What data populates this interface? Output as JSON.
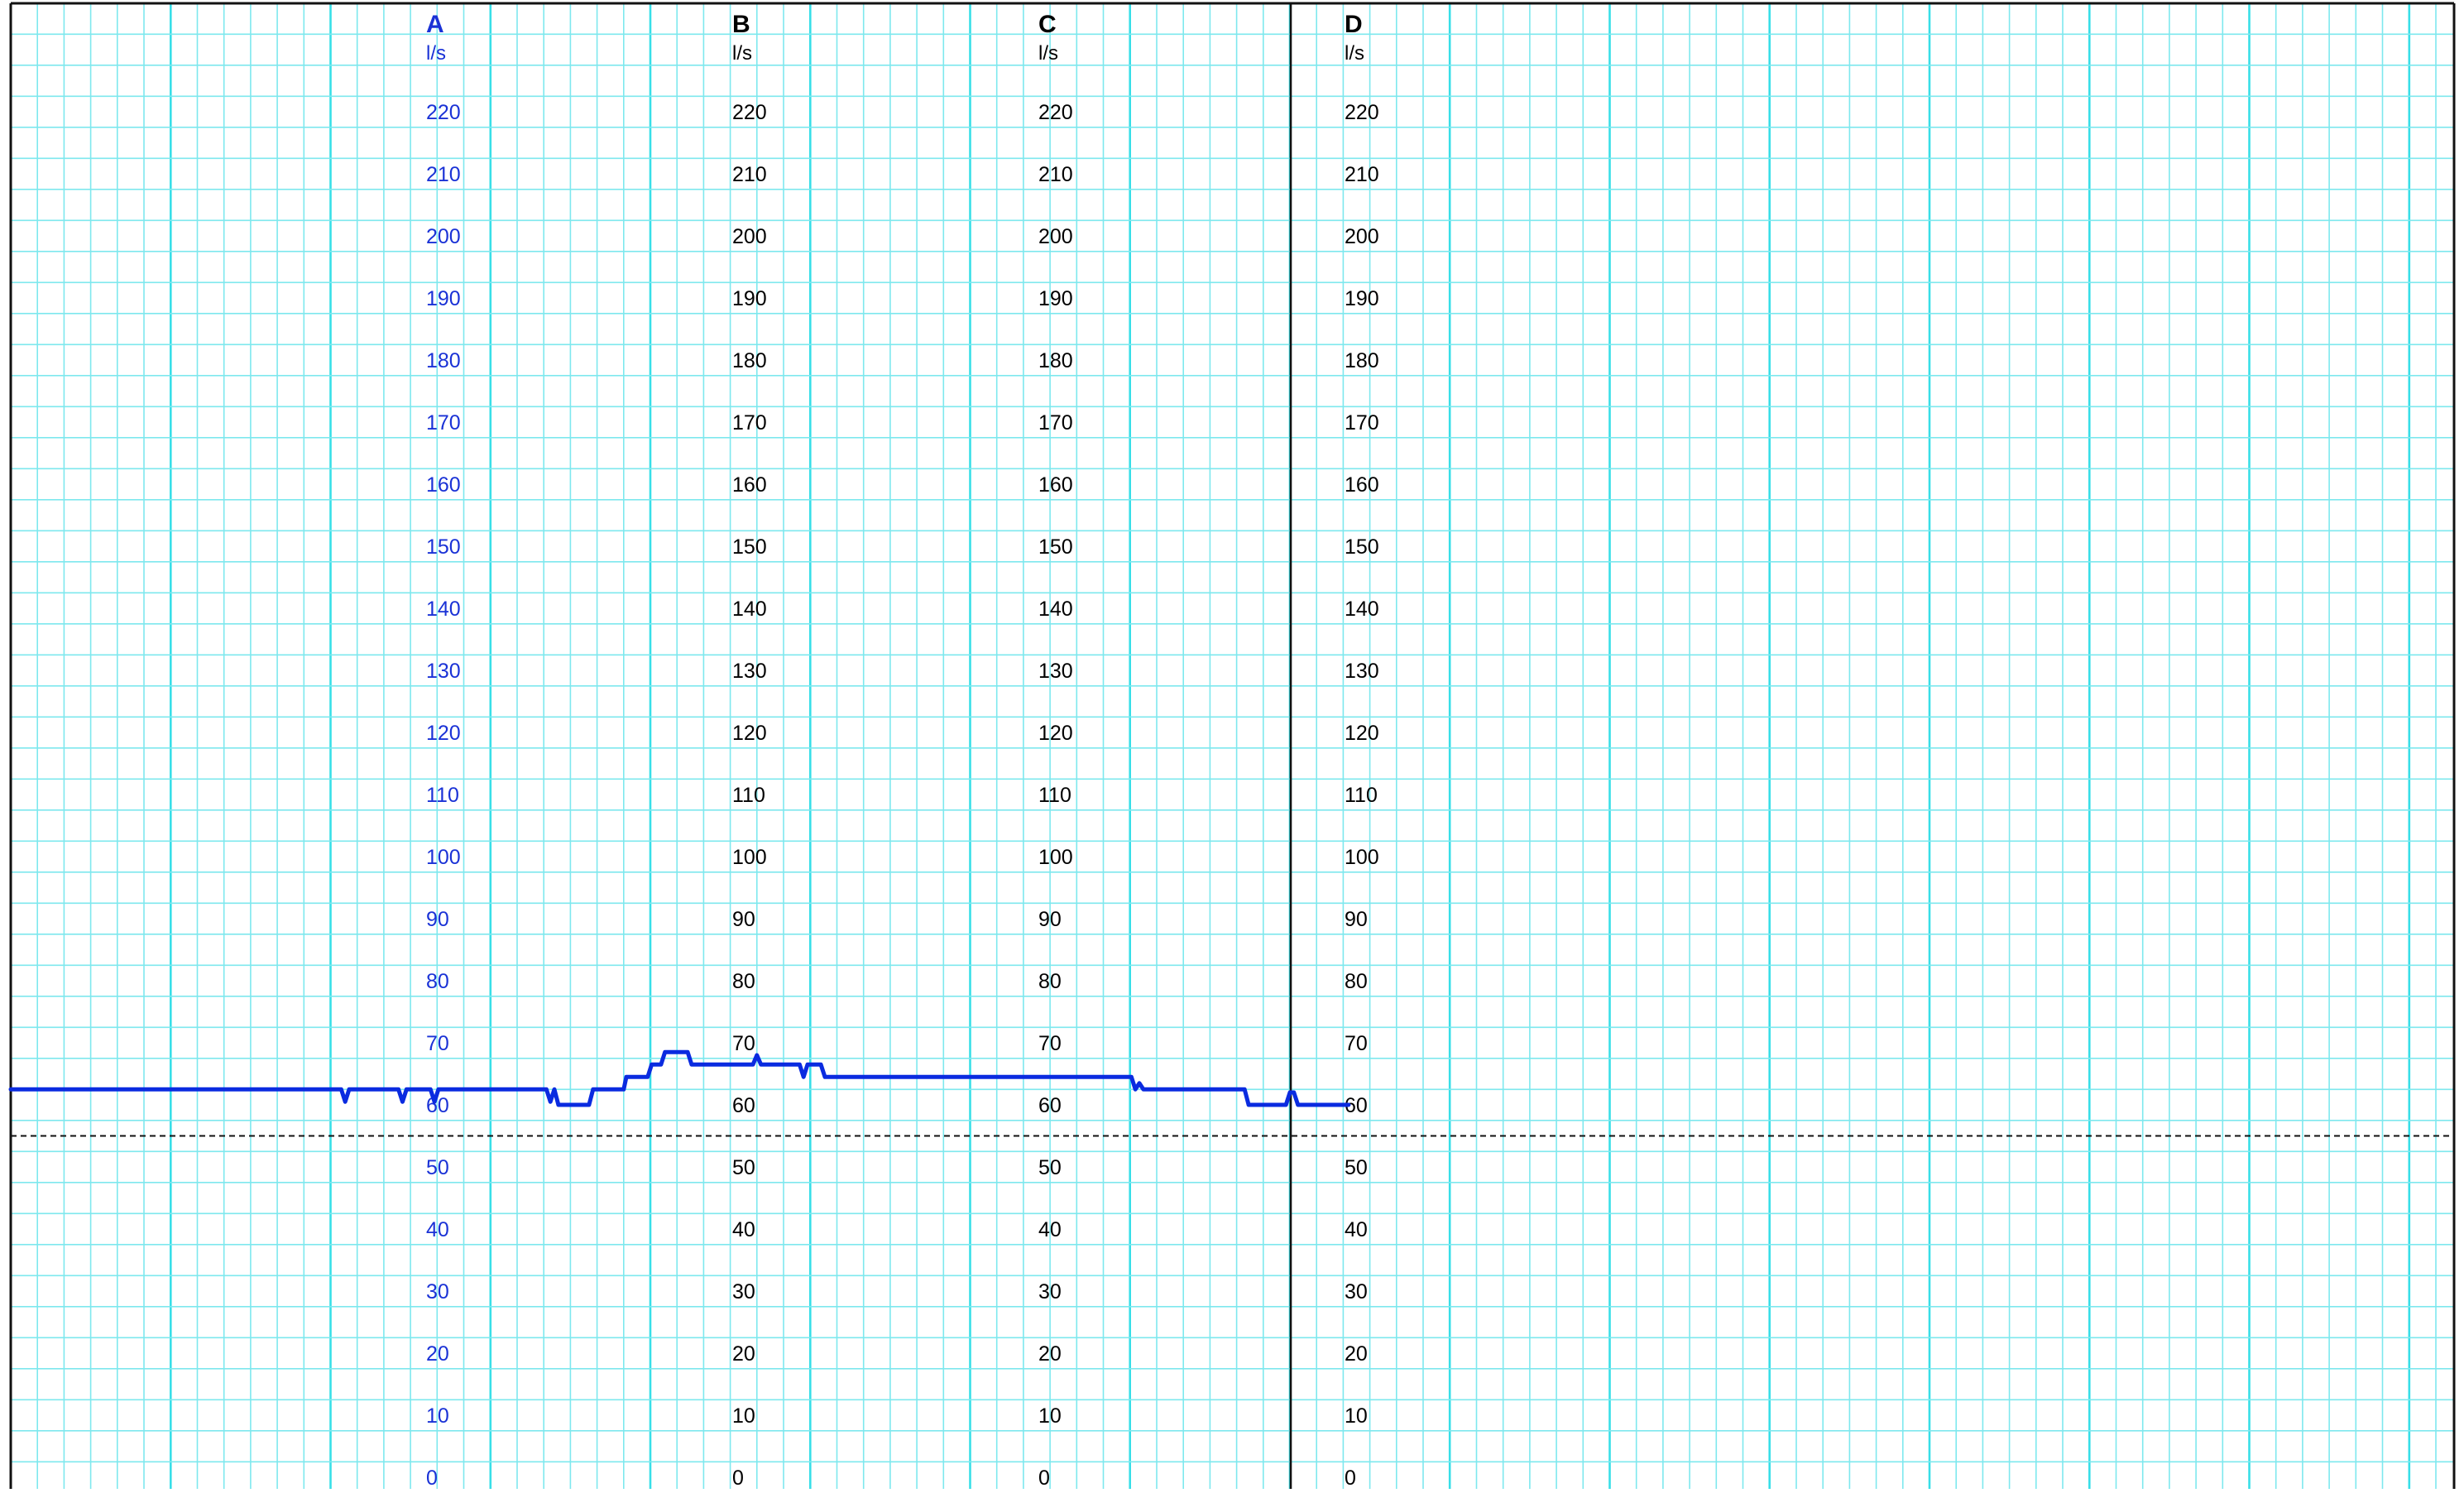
{
  "chart_data": {
    "type": "line",
    "grid": true,
    "threshold": 55,
    "colors": {
      "grid_minor": "#7ee8ee",
      "grid_major": "#38dfe8",
      "series": "#0a2be0",
      "axis_a": "#1a32d6",
      "axis_other": "#000000",
      "border": "#111111",
      "threshold": "#111111"
    },
    "axes": [
      {
        "label": "A",
        "unit": "l/s",
        "color": "#1a32d6",
        "ticks": [
          "220",
          "210",
          "200",
          "190",
          "180",
          "170",
          "160",
          "150",
          "140",
          "130",
          "120",
          "110",
          "100",
          "90",
          "80",
          "70",
          "60",
          "50",
          "40",
          "30",
          "20",
          "10",
          "0"
        ]
      },
      {
        "label": "B",
        "unit": "l/s",
        "color": "#000000",
        "ticks": [
          "220",
          "210",
          "200",
          "190",
          "180",
          "170",
          "160",
          "150",
          "140",
          "130",
          "120",
          "110",
          "100",
          "90",
          "80",
          "70",
          "60",
          "50",
          "40",
          "30",
          "20",
          "10",
          "0"
        ]
      },
      {
        "label": "C",
        "unit": "l/s",
        "color": "#000000",
        "ticks": [
          "220",
          "210",
          "200",
          "190",
          "180",
          "170",
          "160",
          "150",
          "140",
          "130",
          "120",
          "110",
          "100",
          "90",
          "80",
          "70",
          "60",
          "50",
          "40",
          "30",
          "20",
          "10",
          "0"
        ]
      },
      {
        "label": "D",
        "unit": "l/s",
        "color": "#000000",
        "ticks": [
          "220",
          "210",
          "200",
          "190",
          "180",
          "170",
          "160",
          "150",
          "140",
          "130",
          "120",
          "110",
          "100",
          "90",
          "80",
          "70",
          "60",
          "50",
          "40",
          "30",
          "20",
          "10",
          "0"
        ]
      }
    ],
    "ylim": [
      0,
      220
    ],
    "xlim": [
      0,
      48
    ],
    "series": [
      {
        "axis": "A",
        "points": [
          [
            0,
            62.5
          ],
          [
            12.4,
            62.5
          ],
          [
            12.55,
            60.5
          ],
          [
            12.7,
            62.5
          ],
          [
            14.55,
            62.5
          ],
          [
            14.7,
            60.5
          ],
          [
            14.85,
            62.5
          ],
          [
            15.75,
            62.5
          ],
          [
            15.9,
            60.5
          ],
          [
            16.05,
            62.5
          ],
          [
            20.1,
            62.5
          ],
          [
            20.25,
            60.5
          ],
          [
            20.4,
            62.5
          ],
          [
            20.55,
            60.0
          ],
          [
            21.7,
            60.0
          ],
          [
            21.85,
            62.5
          ],
          [
            23.0,
            62.5
          ],
          [
            23.1,
            64.5
          ],
          [
            23.9,
            64.5
          ],
          [
            24.05,
            66.5
          ],
          [
            24.4,
            66.5
          ],
          [
            24.55,
            68.5
          ],
          [
            25.4,
            68.5
          ],
          [
            25.55,
            66.5
          ],
          [
            27.85,
            66.5
          ],
          [
            28.0,
            68.0
          ],
          [
            28.15,
            66.5
          ],
          [
            29.6,
            66.5
          ],
          [
            29.75,
            64.5
          ],
          [
            29.9,
            66.5
          ],
          [
            30.4,
            66.5
          ],
          [
            30.55,
            64.5
          ],
          [
            42.05,
            64.5
          ],
          [
            42.2,
            62.5
          ],
          [
            42.35,
            63.5
          ],
          [
            42.5,
            62.5
          ],
          [
            46.3,
            62.5
          ],
          [
            46.45,
            60.0
          ],
          [
            47.85,
            60.0
          ],
          [
            48.0,
            62.0
          ],
          [
            48.15,
            62.0
          ],
          [
            48.3,
            60.0
          ],
          [
            50.2,
            60.0
          ]
        ]
      }
    ]
  }
}
